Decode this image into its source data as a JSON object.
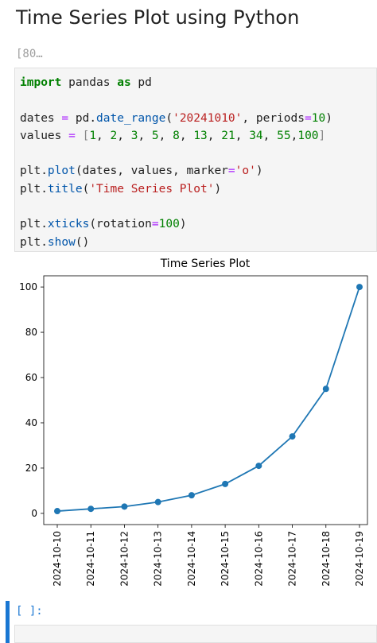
{
  "heading": "Time Series Plot using Python",
  "cell": {
    "prompt": "[80…",
    "code": {
      "lines": [
        [
          {
            "text": "import",
            "color": "#008000",
            "bold": true
          },
          {
            "text": " pandas ",
            "color": "#212121"
          },
          {
            "text": "as",
            "color": "#008000",
            "bold": true
          },
          {
            "text": " pd",
            "color": "#212121"
          }
        ],
        [],
        [
          {
            "text": "dates ",
            "color": "#212121"
          },
          {
            "text": "=",
            "color": "#aa22ff"
          },
          {
            "text": " pd.",
            "color": "#212121"
          },
          {
            "text": "date_range",
            "color": "#0055aa"
          },
          {
            "text": "(",
            "color": "#212121"
          },
          {
            "text": "'20241010'",
            "color": "#ba2121"
          },
          {
            "text": ", periods",
            "color": "#212121"
          },
          {
            "text": "=",
            "color": "#aa22ff"
          },
          {
            "text": "10",
            "color": "#008000"
          },
          {
            "text": ")",
            "color": "#212121"
          }
        ],
        [
          {
            "text": "values ",
            "color": "#212121"
          },
          {
            "text": "=",
            "color": "#aa22ff"
          },
          {
            "text": " [",
            "color": "#888888"
          },
          {
            "text": "1",
            "color": "#008000"
          },
          {
            "text": ", ",
            "color": "#212121"
          },
          {
            "text": "2",
            "color": "#008000"
          },
          {
            "text": ", ",
            "color": "#212121"
          },
          {
            "text": "3",
            "color": "#008000"
          },
          {
            "text": ", ",
            "color": "#212121"
          },
          {
            "text": "5",
            "color": "#008000"
          },
          {
            "text": ", ",
            "color": "#212121"
          },
          {
            "text": "8",
            "color": "#008000"
          },
          {
            "text": ", ",
            "color": "#212121"
          },
          {
            "text": "13",
            "color": "#008000"
          },
          {
            "text": ", ",
            "color": "#212121"
          },
          {
            "text": "21",
            "color": "#008000"
          },
          {
            "text": ", ",
            "color": "#212121"
          },
          {
            "text": "34",
            "color": "#008000"
          },
          {
            "text": ", ",
            "color": "#212121"
          },
          {
            "text": "55",
            "color": "#008000"
          },
          {
            "text": ",",
            "color": "#212121"
          },
          {
            "text": "100",
            "color": "#008000"
          },
          {
            "text": "]",
            "color": "#888888"
          }
        ],
        [],
        [
          {
            "text": "plt.",
            "color": "#212121"
          },
          {
            "text": "plot",
            "color": "#0055aa"
          },
          {
            "text": "(dates, values, marker",
            "color": "#212121"
          },
          {
            "text": "=",
            "color": "#aa22ff"
          },
          {
            "text": "'o'",
            "color": "#ba2121"
          },
          {
            "text": ")",
            "color": "#212121"
          }
        ],
        [
          {
            "text": "plt.",
            "color": "#212121"
          },
          {
            "text": "title",
            "color": "#0055aa"
          },
          {
            "text": "(",
            "color": "#212121"
          },
          {
            "text": "'Time Series Plot'",
            "color": "#ba2121"
          },
          {
            "text": ")",
            "color": "#212121"
          }
        ],
        [],
        [
          {
            "text": "plt.",
            "color": "#212121"
          },
          {
            "text": "xticks",
            "color": "#0055aa"
          },
          {
            "text": "(rotation",
            "color": "#212121"
          },
          {
            "text": "=",
            "color": "#aa22ff"
          },
          {
            "text": "100",
            "color": "#008000"
          },
          {
            "text": ")",
            "color": "#212121"
          }
        ],
        [
          {
            "text": "plt.",
            "color": "#212121"
          },
          {
            "text": "show",
            "color": "#0055aa"
          },
          {
            "text": "()",
            "color": "#212121"
          }
        ]
      ]
    }
  },
  "chart_data": {
    "type": "line",
    "title": "Time Series Plot",
    "categories": [
      "2024-10-10",
      "2024-10-11",
      "2024-10-12",
      "2024-10-13",
      "2024-10-14",
      "2024-10-15",
      "2024-10-16",
      "2024-10-17",
      "2024-10-18",
      "2024-10-19"
    ],
    "values": [
      1,
      2,
      3,
      5,
      8,
      13,
      21,
      34,
      55,
      100
    ],
    "color": "#1f77b4",
    "marker": "o",
    "ylim": [
      -4.95,
      104.95
    ],
    "yticks": [
      0,
      20,
      40,
      60,
      80,
      100
    ],
    "grid": false
  },
  "next_cell": {
    "prompt": "[ ]:"
  }
}
